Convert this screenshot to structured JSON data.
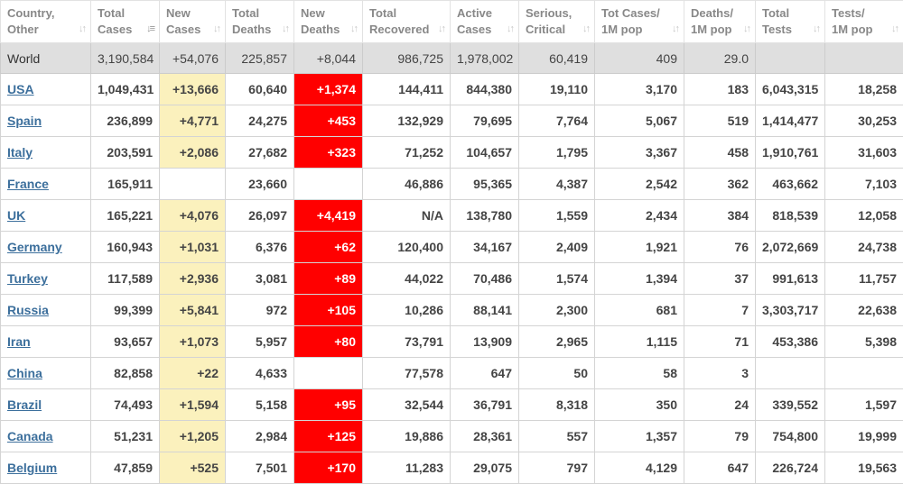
{
  "colors": {
    "new_cases_bg": "#fbf1bd",
    "new_deaths_bg": "#ff0000",
    "world_row_bg": "#dfdfdf",
    "link": "#3c6f9c"
  },
  "table": {
    "headers": [
      {
        "l1": "Country,",
        "l2": "Other",
        "icon": "sort-arrows-icon"
      },
      {
        "l1": "Total",
        "l2": "Cases",
        "icon": "sort-desc-icon"
      },
      {
        "l1": "New",
        "l2": "Cases",
        "icon": "sort-arrows-icon"
      },
      {
        "l1": "Total",
        "l2": "Deaths",
        "icon": "sort-arrows-icon"
      },
      {
        "l1": "New",
        "l2": "Deaths",
        "icon": "sort-arrows-icon"
      },
      {
        "l1": "Total",
        "l2": "Recovered",
        "icon": "sort-arrows-icon"
      },
      {
        "l1": "Active",
        "l2": "Cases",
        "icon": "sort-arrows-icon"
      },
      {
        "l1": "Serious,",
        "l2": "Critical",
        "icon": "sort-arrows-icon"
      },
      {
        "l1": "Tot Cases/",
        "l2": "1M pop",
        "icon": "sort-arrows-icon"
      },
      {
        "l1": "Deaths/",
        "l2": "1M pop",
        "icon": "sort-arrows-icon"
      },
      {
        "l1": "Total",
        "l2": "Tests",
        "icon": "sort-arrows-icon"
      },
      {
        "l1": "Tests/",
        "l2": "1M pop",
        "icon": "sort-arrows-icon"
      }
    ],
    "world": {
      "country": "World",
      "cells": [
        "3,190,584",
        "+54,076",
        "225,857",
        "+8,044",
        "986,725",
        "1,978,002",
        "60,419",
        "409",
        "29.0",
        "",
        ""
      ]
    },
    "rows": [
      {
        "country": "USA",
        "cells": [
          "1,049,431",
          "+13,666",
          "60,640",
          "+1,374",
          "144,411",
          "844,380",
          "19,110",
          "3,170",
          "183",
          "6,043,315",
          "18,258"
        ]
      },
      {
        "country": "Spain",
        "cells": [
          "236,899",
          "+4,771",
          "24,275",
          "+453",
          "132,929",
          "79,695",
          "7,764",
          "5,067",
          "519",
          "1,414,477",
          "30,253"
        ]
      },
      {
        "country": "Italy",
        "cells": [
          "203,591",
          "+2,086",
          "27,682",
          "+323",
          "71,252",
          "104,657",
          "1,795",
          "3,367",
          "458",
          "1,910,761",
          "31,603"
        ]
      },
      {
        "country": "France",
        "cells": [
          "165,911",
          "",
          "23,660",
          "",
          "46,886",
          "95,365",
          "4,387",
          "2,542",
          "362",
          "463,662",
          "7,103"
        ]
      },
      {
        "country": "UK",
        "cells": [
          "165,221",
          "+4,076",
          "26,097",
          "+4,419",
          "N/A",
          "138,780",
          "1,559",
          "2,434",
          "384",
          "818,539",
          "12,058"
        ]
      },
      {
        "country": "Germany",
        "cells": [
          "160,943",
          "+1,031",
          "6,376",
          "+62",
          "120,400",
          "34,167",
          "2,409",
          "1,921",
          "76",
          "2,072,669",
          "24,738"
        ]
      },
      {
        "country": "Turkey",
        "cells": [
          "117,589",
          "+2,936",
          "3,081",
          "+89",
          "44,022",
          "70,486",
          "1,574",
          "1,394",
          "37",
          "991,613",
          "11,757"
        ]
      },
      {
        "country": "Russia",
        "cells": [
          "99,399",
          "+5,841",
          "972",
          "+105",
          "10,286",
          "88,141",
          "2,300",
          "681",
          "7",
          "3,303,717",
          "22,638"
        ]
      },
      {
        "country": "Iran",
        "cells": [
          "93,657",
          "+1,073",
          "5,957",
          "+80",
          "73,791",
          "13,909",
          "2,965",
          "1,115",
          "71",
          "453,386",
          "5,398"
        ]
      },
      {
        "country": "China",
        "cells": [
          "82,858",
          "+22",
          "4,633",
          "",
          "77,578",
          "647",
          "50",
          "58",
          "3",
          "",
          ""
        ]
      },
      {
        "country": "Brazil",
        "cells": [
          "74,493",
          "+1,594",
          "5,158",
          "+95",
          "32,544",
          "36,791",
          "8,318",
          "350",
          "24",
          "339,552",
          "1,597"
        ]
      },
      {
        "country": "Canada",
        "cells": [
          "51,231",
          "+1,205",
          "2,984",
          "+125",
          "19,886",
          "28,361",
          "557",
          "1,357",
          "79",
          "754,800",
          "19,999"
        ]
      },
      {
        "country": "Belgium",
        "cells": [
          "47,859",
          "+525",
          "7,501",
          "+170",
          "11,283",
          "29,075",
          "797",
          "4,129",
          "647",
          "226,724",
          "19,563"
        ]
      }
    ]
  }
}
